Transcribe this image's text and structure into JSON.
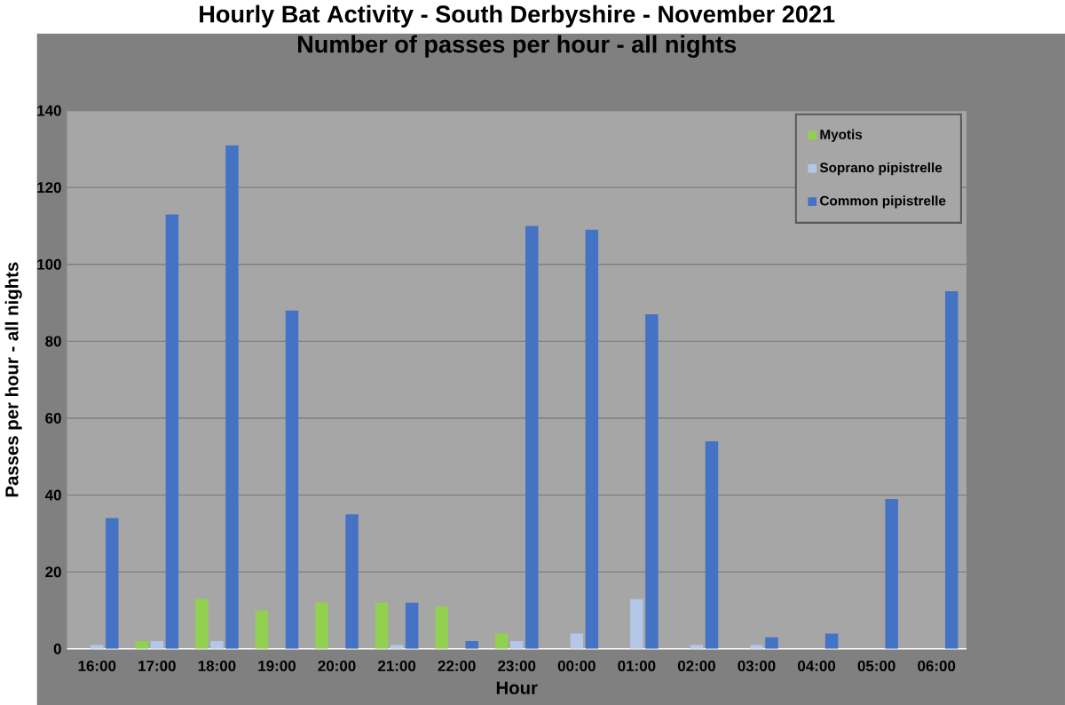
{
  "chart_data": {
    "type": "bar",
    "title": "Hourly Bat Activity - South Derbyshire - November 2021",
    "subtitle": "Number of passes per hour - all nights",
    "xlabel": "Hour",
    "ylabel": "Passes per hour - all nights",
    "categories": [
      "16:00",
      "17:00",
      "18:00",
      "19:00",
      "20:00",
      "21:00",
      "22:00",
      "23:00",
      "00:00",
      "01:00",
      "02:00",
      "03:00",
      "04:00",
      "05:00",
      "06:00"
    ],
    "series": [
      {
        "name": "Myotis",
        "color": "#92d050",
        "values": [
          0,
          2,
          13,
          10,
          12,
          12,
          11,
          4,
          0,
          0,
          0,
          0,
          0,
          0,
          0
        ]
      },
      {
        "name": "Soprano pipistrelle",
        "color": "#b4c7e7",
        "values": [
          1,
          2,
          2,
          0,
          0,
          1,
          0,
          2,
          4,
          13,
          1,
          1,
          0,
          0,
          0
        ]
      },
      {
        "name": "Common pipistrelle",
        "color": "#4472c4",
        "values": [
          34,
          113,
          131,
          88,
          35,
          12,
          2,
          110,
          109,
          87,
          54,
          3,
          4,
          39,
          93
        ]
      }
    ],
    "ylim": [
      0,
      140
    ],
    "yticks": [
      0,
      20,
      40,
      60,
      80,
      100,
      120,
      140
    ],
    "grid": "y",
    "legend": "top right"
  }
}
